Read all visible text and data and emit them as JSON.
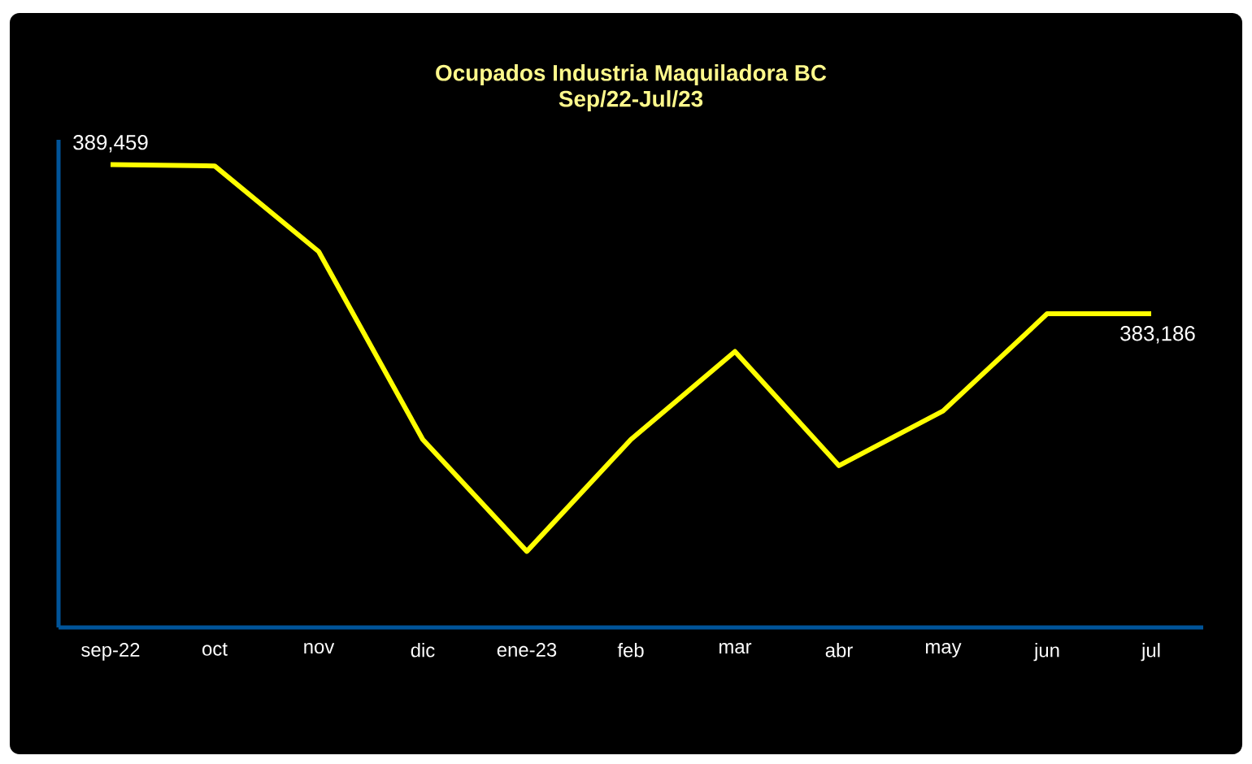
{
  "chart_data": {
    "type": "line",
    "title": "Ocupados Industria Maquiladora BC",
    "subtitle": "Sep/22-Jul/23",
    "categories": [
      "sep-22",
      "oct",
      "nov",
      "dic",
      "ene-23",
      "feb",
      "mar",
      "abr",
      "may",
      "jun",
      "jul"
    ],
    "series": [
      {
        "color": "#ffff00",
        "values": [
          389459,
          389400,
          385800,
          377900,
          373200,
          377900,
          381600,
          376800,
          379100,
          383186,
          383186
        ],
        "value_labels": [
          "389,459",
          null,
          null,
          null,
          null,
          null,
          null,
          null,
          null,
          null,
          "383,186"
        ]
      }
    ],
    "ylim": [
      370000,
      390500
    ],
    "marker": "none",
    "line_style": "solid",
    "grid": false
  }
}
